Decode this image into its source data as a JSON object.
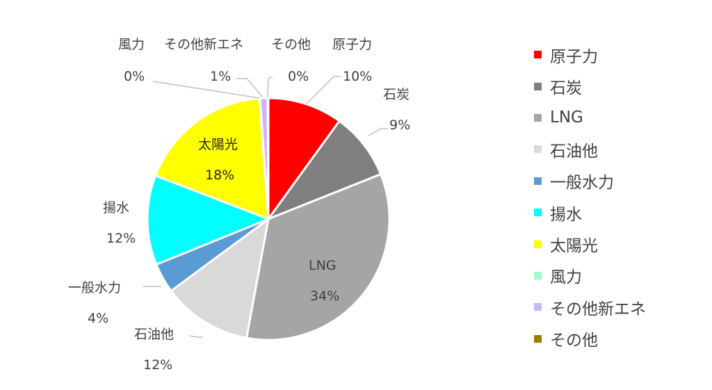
{
  "chart_data": {
    "type": "pie",
    "title": "",
    "legend_position": "right",
    "slices": [
      {
        "name": "原子力",
        "value": 10,
        "label": "10%",
        "color": "#ff0000"
      },
      {
        "name": "石炭",
        "value": 9,
        "label": "9%",
        "color": "#7f7f7f"
      },
      {
        "name": "LNG",
        "value": 34,
        "label": "34%",
        "color": "#a5a5a5"
      },
      {
        "name": "石油他",
        "value": 12,
        "label": "12%",
        "color": "#d9d9d9"
      },
      {
        "name": "一般水力",
        "value": 4,
        "label": "4%",
        "color": "#5b9bd5"
      },
      {
        "name": "揚水",
        "value": 12,
        "label": "12%",
        "color": "#00ffff"
      },
      {
        "name": "太陽光",
        "value": 18,
        "label": "18%",
        "color": "#ffff00"
      },
      {
        "name": "風力",
        "value": 0.1,
        "label": "0%",
        "color": "#99ffcc"
      },
      {
        "name": "その他新エネ",
        "value": 1,
        "label": "1%",
        "color": "#ccb3ff"
      },
      {
        "name": "その他",
        "value": 0.1,
        "label": "0%",
        "color": "#9c7c00"
      }
    ]
  }
}
